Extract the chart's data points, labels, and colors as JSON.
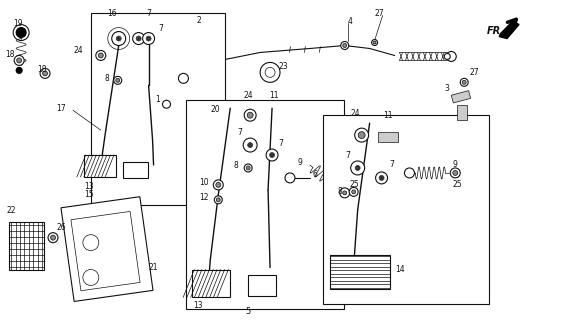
{
  "bg_color": "#f5f5f0",
  "line_color": "#1a1a1a",
  "fig_width": 5.68,
  "fig_height": 3.2,
  "dpi": 100,
  "gray": "#888888",
  "darkgray": "#444444"
}
